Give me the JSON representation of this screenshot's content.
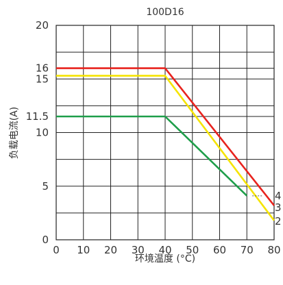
{
  "chart_data": {
    "type": "line",
    "title": "100D16",
    "xlabel": "环境温度 (°C)",
    "ylabel": "负载电流(A)",
    "xlim": [
      0,
      80
    ],
    "ylim": [
      0,
      20
    ],
    "grid": true,
    "x_ticks": [
      "0",
      "10",
      "20",
      "30",
      "40",
      "50",
      "60",
      "70",
      "80"
    ],
    "y_ticks": [
      {
        "value": 0,
        "label": "0"
      },
      {
        "value": 5,
        "label": "5"
      },
      {
        "value": 10,
        "label": "10"
      },
      {
        "value": 11.5,
        "label": "11.5"
      },
      {
        "value": 15,
        "label": "15"
      },
      {
        "value": 16,
        "label": "16"
      },
      {
        "value": 20,
        "label": "20"
      }
    ],
    "series": [
      {
        "name": "4",
        "color": "#e8231e",
        "points": [
          [
            0,
            16
          ],
          [
            40,
            16
          ],
          [
            80,
            3.2
          ]
        ]
      },
      {
        "name": "3",
        "color": "#f5e400",
        "points": [
          [
            0,
            15.3
          ],
          [
            40,
            15.3
          ],
          [
            80,
            1.8
          ]
        ]
      },
      {
        "name": "2",
        "color": "#1e9e4a",
        "points": [
          [
            0,
            11.5
          ],
          [
            40,
            11.5
          ],
          [
            70,
            4.1
          ]
        ]
      }
    ]
  }
}
